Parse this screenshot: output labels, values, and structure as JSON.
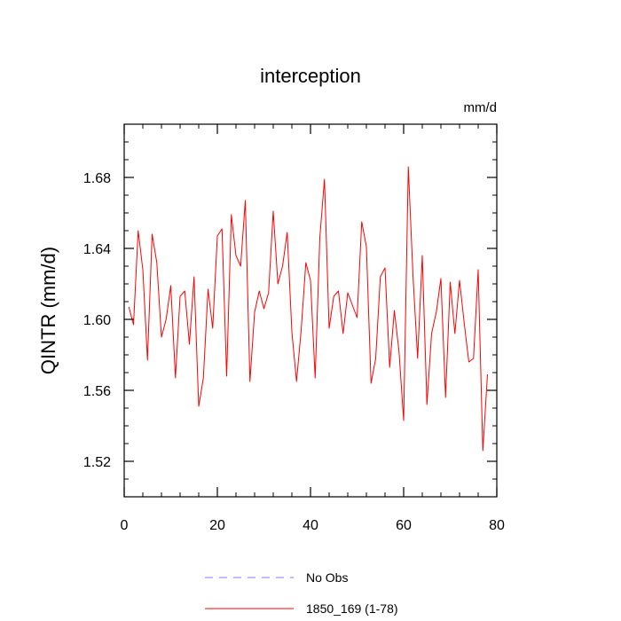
{
  "chart_data": {
    "type": "line",
    "title": "interception",
    "units": "mm/d",
    "xlabel": "",
    "ylabel": "QINTR  (mm/d)",
    "xlim": [
      0,
      80
    ],
    "ylim": [
      1.5,
      1.71
    ],
    "xticks": [
      0,
      20,
      40,
      60,
      80
    ],
    "xtick_labels": [
      "0",
      "20",
      "40",
      "60",
      "80"
    ],
    "yticks": [
      1.52,
      1.56,
      1.6,
      1.64,
      1.68
    ],
    "ytick_labels": [
      "1.52",
      "1.56",
      "1.60",
      "1.64",
      "1.68"
    ],
    "series": [
      {
        "name": "No Obs",
        "color": "#7f7fff",
        "style": "dashed",
        "values": []
      },
      {
        "name": "1850_169 (1-78)",
        "color": "#ff0000",
        "style": "solid",
        "x": [
          1,
          2,
          3,
          4,
          5,
          6,
          7,
          8,
          9,
          10,
          11,
          12,
          13,
          14,
          15,
          16,
          17,
          18,
          19,
          20,
          21,
          22,
          23,
          24,
          25,
          26,
          27,
          28,
          29,
          30,
          31,
          32,
          33,
          34,
          35,
          36,
          37,
          38,
          39,
          40,
          41,
          42,
          43,
          44,
          45,
          46,
          47,
          48,
          49,
          50,
          51,
          52,
          53,
          54,
          55,
          56,
          57,
          58,
          59,
          60,
          61,
          62,
          63,
          64,
          65,
          66,
          67,
          68,
          69,
          70,
          71,
          72,
          73,
          74,
          75,
          76,
          77,
          78
        ],
        "values": [
          1.607,
          1.597,
          1.65,
          1.628,
          1.577,
          1.648,
          1.632,
          1.59,
          1.6,
          1.619,
          1.567,
          1.613,
          1.616,
          1.586,
          1.624,
          1.551,
          1.567,
          1.617,
          1.595,
          1.647,
          1.651,
          1.568,
          1.659,
          1.636,
          1.63,
          1.667,
          1.565,
          1.604,
          1.616,
          1.606,
          1.615,
          1.661,
          1.62,
          1.63,
          1.649,
          1.593,
          1.565,
          1.594,
          1.632,
          1.622,
          1.567,
          1.646,
          1.679,
          1.595,
          1.613,
          1.616,
          1.592,
          1.615,
          1.608,
          1.601,
          1.655,
          1.641,
          1.564,
          1.578,
          1.624,
          1.629,
          1.573,
          1.605,
          1.582,
          1.543,
          1.686,
          1.625,
          1.578,
          1.636,
          1.552,
          1.592,
          1.604,
          1.623,
          1.556,
          1.621,
          1.592,
          1.622,
          1.598,
          1.576,
          1.578,
          1.628,
          1.526,
          1.569
        ]
      }
    ],
    "legend": [
      {
        "label": "No Obs",
        "color": "#7f7fff",
        "style": "dashed"
      },
      {
        "label": "1850_169 (1-78)",
        "color": "#ff0000",
        "style": "solid"
      }
    ]
  }
}
